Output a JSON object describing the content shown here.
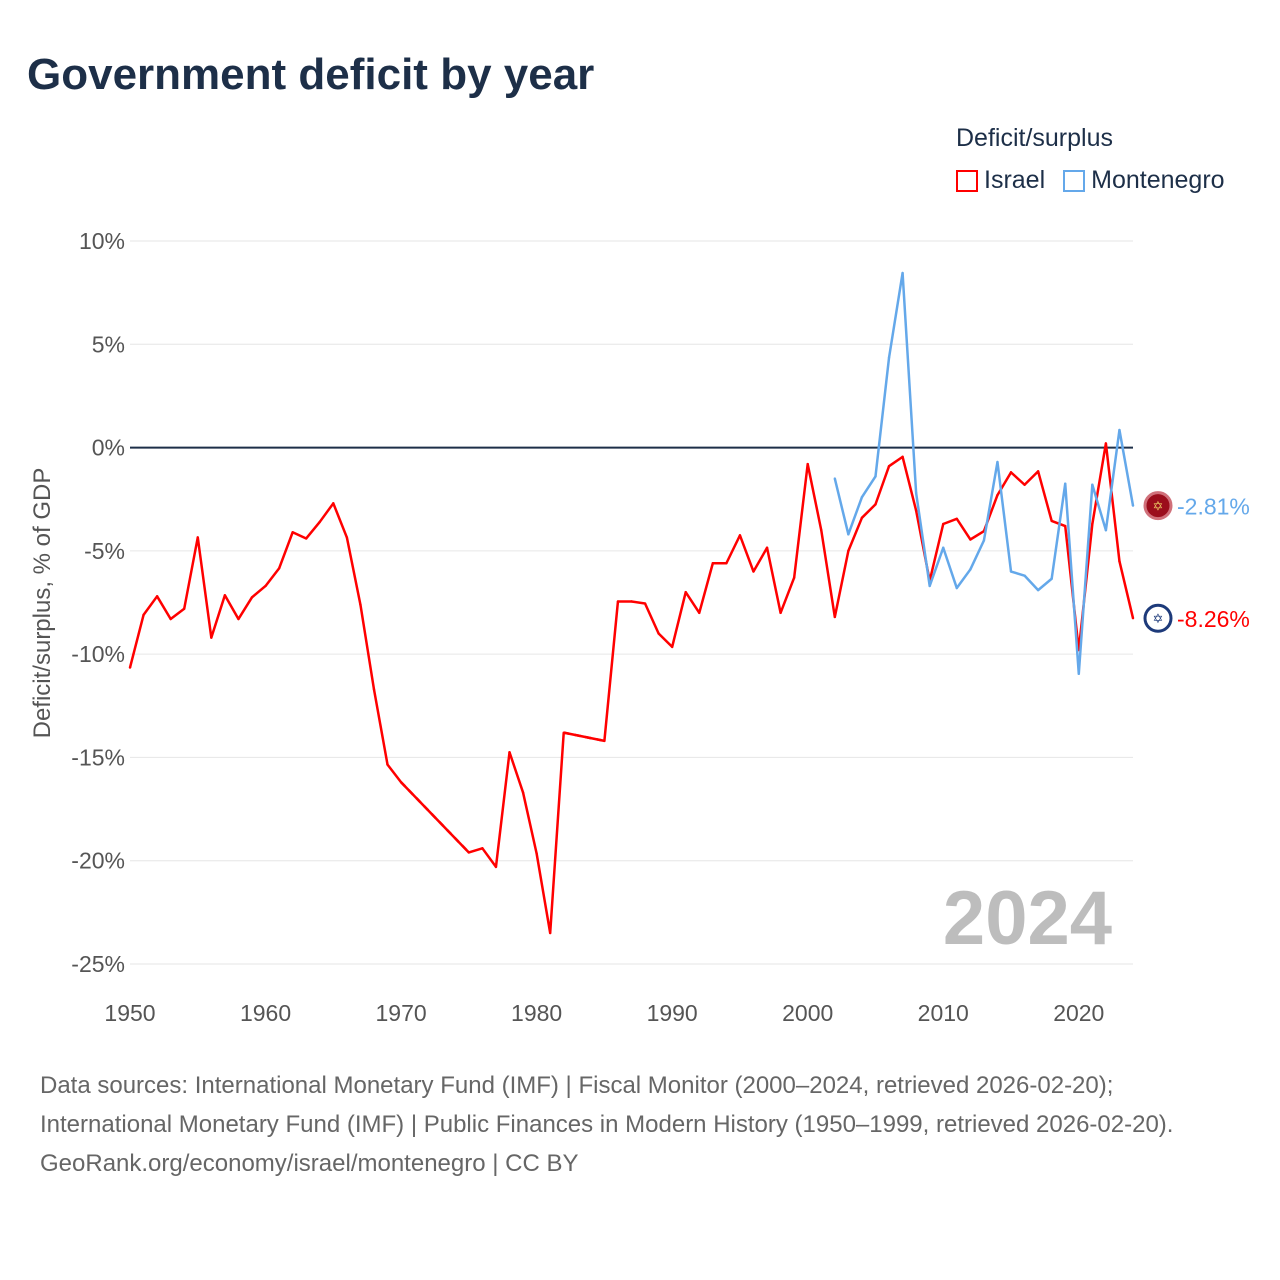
{
  "title": "Government deficit by year",
  "legend": {
    "title": "Deficit/surplus",
    "items": [
      {
        "name": "Israel",
        "color": "#ff0000"
      },
      {
        "name": "Montenegro",
        "color": "#64a8ea"
      }
    ]
  },
  "watermark_year": "2024",
  "footer": {
    "sources": "Data sources: International Monetary Fund (IMF) | Fiscal Monitor (2000–2024, retrieved 2026-02-20); International Monetary Fund (IMF) | Public Finances in Modern History (1950–1999, retrieved 2026-02-20).",
    "credit": "GeoRank.org/economy/israel/montenegro | CC BY"
  },
  "chart_data": {
    "type": "line",
    "title": "Government deficit by year",
    "xlabel": "",
    "ylabel": "Deficit/surplus, % of GDP",
    "xlim": [
      1950,
      2024
    ],
    "ylim": [
      -25,
      10
    ],
    "xticks": [
      1950,
      1960,
      1970,
      1980,
      1990,
      2000,
      2010,
      2020
    ],
    "yticks": [
      10,
      5,
      0,
      -5,
      -10,
      -15,
      -20,
      -25
    ],
    "ytick_labels": [
      "10%",
      "5%",
      "0%",
      "-5%",
      "-10%",
      "-15%",
      "-20%",
      "-25%"
    ],
    "grid": true,
    "legend_position": "top-right",
    "end_labels": [
      "-2.81%",
      "-8.26%"
    ],
    "series": [
      {
        "name": "Israel",
        "color": "#ff0000",
        "end_label": "-8.26%",
        "x": [
          1950,
          1951,
          1952,
          1953,
          1954,
          1955,
          1956,
          1957,
          1958,
          1959,
          1960,
          1961,
          1962,
          1963,
          1964,
          1965,
          1966,
          1967,
          1968,
          1969,
          1970,
          1971,
          1972,
          1973,
          1974,
          1975,
          1976,
          1977,
          1978,
          1979,
          1980,
          1981,
          1982,
          1983,
          1984,
          1985,
          1986,
          1987,
          1988,
          1989,
          1990,
          1991,
          1992,
          1993,
          1994,
          1995,
          1996,
          1997,
          1998,
          1999,
          2000,
          2001,
          2002,
          2003,
          2004,
          2005,
          2006,
          2007,
          2008,
          2009,
          2010,
          2011,
          2012,
          2013,
          2014,
          2015,
          2016,
          2017,
          2018,
          2019,
          2020,
          2021,
          2022,
          2023,
          2024
        ],
        "values": [
          -10.65,
          -8.1,
          -7.2,
          -8.3,
          -7.8,
          -4.35,
          -9.2,
          -7.15,
          -8.3,
          -7.25,
          -6.7,
          -5.85,
          -4.1,
          -4.4,
          -3.6,
          -2.7,
          -4.35,
          -7.6,
          -11.7,
          -15.35,
          -16.2,
          null,
          null,
          null,
          null,
          -19.6,
          -19.4,
          -20.3,
          -14.75,
          -16.7,
          -19.65,
          -23.5,
          -13.8,
          null,
          null,
          -14.2,
          -7.45,
          -7.45,
          -7.55,
          -9.0,
          -9.65,
          -7.0,
          -8.0,
          -5.6,
          -5.6,
          -4.25,
          -6.0,
          -4.85,
          -8.0,
          -6.3,
          -0.8,
          -4.0,
          -8.2,
          -5.0,
          -3.4,
          -2.75,
          -0.9,
          -0.45,
          -3.05,
          -6.45,
          -3.7,
          -3.45,
          -4.45,
          -4.05,
          -2.3,
          -1.2,
          -1.8,
          -1.15,
          -3.55,
          -3.8,
          -9.8,
          -3.7,
          0.2,
          -5.5,
          -8.26
        ]
      },
      {
        "name": "Montenegro",
        "color": "#64a8ea",
        "end_label": "-2.81%",
        "x": [
          2002,
          2003,
          2004,
          2005,
          2006,
          2007,
          2008,
          2009,
          2010,
          2011,
          2012,
          2013,
          2014,
          2015,
          2016,
          2017,
          2018,
          2019,
          2020,
          2021,
          2022,
          2023,
          2024
        ],
        "values": [
          -1.5,
          -4.2,
          -2.4,
          -1.4,
          4.35,
          8.45,
          -2.2,
          -6.7,
          -4.85,
          -6.8,
          -5.9,
          -4.5,
          -0.7,
          -6.0,
          -6.2,
          -6.9,
          -6.35,
          -1.75,
          -10.95,
          -1.8,
          -4.0,
          0.85,
          -2.81
        ]
      }
    ]
  }
}
